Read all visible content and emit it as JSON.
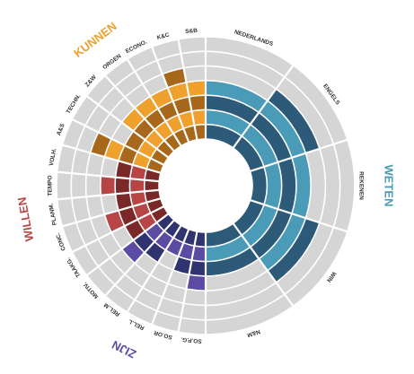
{
  "chart_data": {
    "type": "radial_bar",
    "rlim": [
      0,
      7
    ],
    "background_color": "#d5d5d5",
    "groups": [
      {
        "name": "WETEN",
        "color": "#4a9bb8",
        "alt_color": "#2d5a78",
        "categories": [
          "NEDERLANDS",
          "ENGELS",
          "REKENEN",
          "WIN",
          "N&M"
        ],
        "values": [
          4,
          5,
          4,
          5,
          3
        ]
      },
      {
        "name": "ZIJN",
        "color": "#5b4ba3",
        "alt_color": "#2f3470",
        "categories": [
          "SO.P.G.",
          "SO.OR",
          "REL.L",
          "REL.M",
          "MOTIV."
        ],
        "values": [
          4,
          3,
          2,
          3,
          4
        ]
      },
      {
        "name": "WILLEN",
        "color": "#b84545",
        "alt_color": "#7a2828",
        "categories": [
          "TAAKG.",
          "CONC.",
          "PLANM.",
          "TEMPO",
          "VOLH."
        ],
        "values": [
          3,
          4,
          3,
          4,
          3
        ]
      },
      {
        "name": "KUNNEN",
        "color": "#f0a02c",
        "alt_color": "#a8681c",
        "categories": [
          "A&S",
          "TECHN.",
          "Z&W",
          "ORGEN",
          "ECONO.",
          "K&C",
          "S&B"
        ],
        "values": [
          5,
          3,
          4,
          4,
          4,
          5,
          4
        ]
      }
    ]
  }
}
